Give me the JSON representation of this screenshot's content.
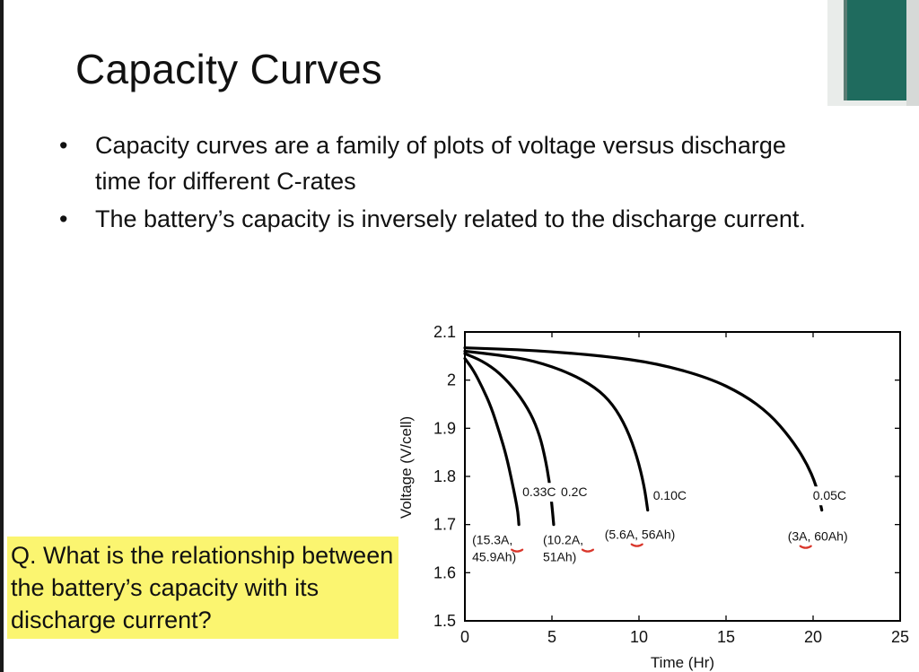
{
  "slide": {
    "title": "Capacity Curves",
    "bullets": [
      "Capacity curves are a family of plots of voltage versus discharge time for different C-rates",
      "The battery’s capacity is inversely related to the discharge current."
    ],
    "bullet_glyph": "•",
    "question": "Q. What is the relationship between the battery’s capacity with its discharge current?",
    "highlight_color": "#fbf570"
  },
  "chart_data": {
    "type": "line",
    "title": "",
    "xlabel": "Time (Hr)",
    "ylabel": "Voltage (V/cell)",
    "xlim": [
      0,
      25
    ],
    "ylim": [
      1.5,
      2.1
    ],
    "xticks": [
      0,
      5,
      10,
      15,
      20,
      25
    ],
    "yticks": [
      1.5,
      1.6,
      1.7,
      1.8,
      1.9,
      2.0,
      2.1
    ],
    "ytick_labels": [
      "1.5",
      "1.6",
      "1.7",
      "1.8",
      "1.9",
      "2",
      "2.1"
    ],
    "grid": false,
    "line_color": "#000000",
    "annotation_mark_color": "#d9362b",
    "series": [
      {
        "rate_label": "0.33C",
        "point_label_lines": [
          "(15.3A,",
          "45.9Ah)"
        ],
        "x": [
          0,
          0.5,
          1,
          1.5,
          2,
          2.4,
          2.7,
          2.9,
          3.05,
          3.1
        ],
        "y": [
          2.045,
          2.02,
          1.985,
          1.945,
          1.89,
          1.84,
          1.79,
          1.755,
          1.725,
          1.7
        ]
      },
      {
        "rate_label": "0.2C",
        "point_label_lines": [
          "(10.2A,",
          "51Ah)"
        ],
        "x": [
          0,
          1,
          2,
          3,
          3.8,
          4.3,
          4.6,
          4.85,
          5.0,
          5.1
        ],
        "y": [
          2.055,
          2.04,
          2.015,
          1.975,
          1.93,
          1.885,
          1.84,
          1.79,
          1.74,
          1.7
        ]
      },
      {
        "rate_label": "0.10C",
        "point_label_lines": [
          "(5.6A, 56Ah)"
        ],
        "x": [
          0,
          2,
          4,
          6,
          7.5,
          8.5,
          9.3,
          9.9,
          10.3,
          10.5
        ],
        "y": [
          2.06,
          2.052,
          2.04,
          2.015,
          1.985,
          1.95,
          1.9,
          1.84,
          1.78,
          1.73
        ]
      },
      {
        "rate_label": "0.05C",
        "point_label_lines": [
          "(3A, 60Ah)"
        ],
        "x": [
          0,
          4,
          8,
          11,
          14,
          16,
          17.5,
          18.7,
          19.6,
          20.2,
          20.5
        ],
        "y": [
          2.067,
          2.062,
          2.05,
          2.035,
          2.005,
          1.97,
          1.93,
          1.88,
          1.83,
          1.78,
          1.73
        ]
      }
    ]
  }
}
